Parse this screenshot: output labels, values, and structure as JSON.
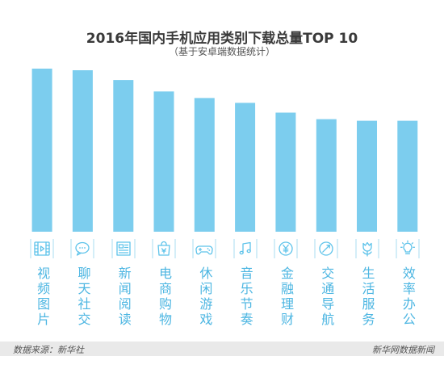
{
  "chart_data": {
    "type": "bar",
    "title": "2016年国内手机应用类别下载总量TOP 10",
    "subtitle": "（基于安卓端数据统计）",
    "categories": [
      "视频图片",
      "聊天社交",
      "新闻阅读",
      "电商购物",
      "休闲游戏",
      "音乐节奏",
      "金融理财",
      "交通导航",
      "生活服务",
      "效率办公"
    ],
    "values": [
      100,
      99,
      93,
      86,
      82,
      79,
      73,
      69,
      68,
      68
    ],
    "xlabel": "",
    "ylabel": "",
    "grid": false,
    "legend": "none",
    "category_icons": [
      "film-icon",
      "chat-bubble-icon",
      "newspaper-icon",
      "shopping-bag-icon",
      "gamepad-icon",
      "music-note-icon",
      "yen-icon",
      "compass-icon",
      "flower-icon",
      "lightbulb-icon"
    ]
  },
  "footer": {
    "source": "数据来源：新华社",
    "brand": "新华网数据新闻"
  },
  "colors": {
    "bar": "#7ccdee",
    "label": "#4db6e2",
    "icon": "#5ec3ea",
    "footer_band": "#e9e9e9"
  }
}
